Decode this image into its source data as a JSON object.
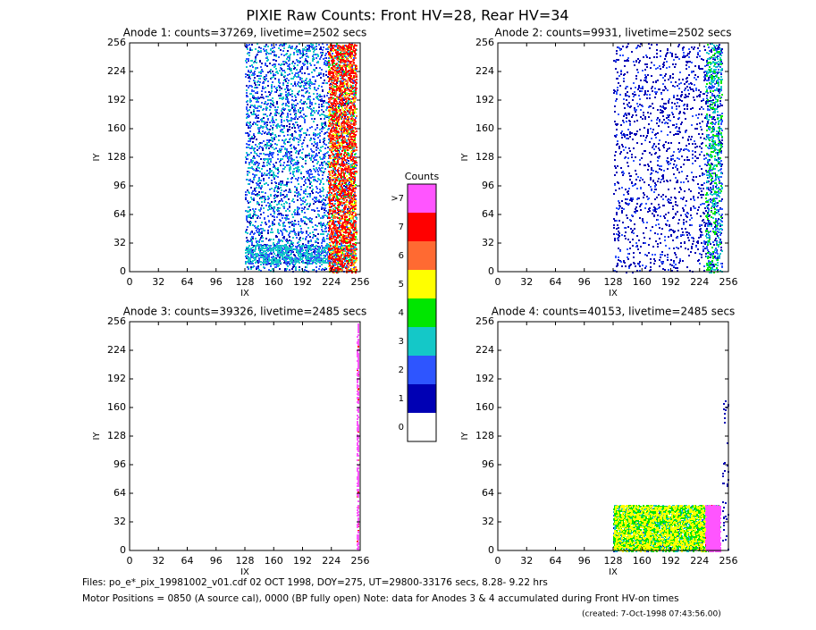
{
  "title": "PIXIE Raw Counts:  Front HV=28, Rear HV=34",
  "chart_data": [
    {
      "type": "heatmap",
      "title": "Anode 1: counts=37269, livetime=2502 secs",
      "xlabel": "IX",
      "ylabel": "IY",
      "xlim": [
        0,
        256
      ],
      "ylim": [
        0,
        256
      ],
      "xticks": [
        0,
        32,
        64,
        96,
        128,
        160,
        192,
        224,
        256
      ],
      "yticks": [
        0,
        32,
        64,
        96,
        128,
        160,
        192,
        224,
        256
      ]
    },
    {
      "type": "heatmap",
      "title": "Anode 2: counts=9931, livetime=2502 secs",
      "xlabel": "IX",
      "ylabel": "IY",
      "xlim": [
        0,
        256
      ],
      "ylim": [
        0,
        256
      ],
      "xticks": [
        0,
        32,
        64,
        96,
        128,
        160,
        192,
        224,
        256
      ],
      "yticks": [
        0,
        32,
        64,
        96,
        128,
        160,
        192,
        224,
        256
      ]
    },
    {
      "type": "heatmap",
      "title": "Anode 3: counts=39326, livetime=2485 secs",
      "xlabel": "IX",
      "ylabel": "IY",
      "xlim": [
        0,
        256
      ],
      "ylim": [
        0,
        256
      ],
      "xticks": [
        0,
        32,
        64,
        96,
        128,
        160,
        192,
        224,
        256
      ],
      "yticks": [
        0,
        32,
        64,
        96,
        128,
        160,
        192,
        224,
        256
      ]
    },
    {
      "type": "heatmap",
      "title": "Anode 4: counts=40153, livetime=2485 secs",
      "xlabel": "IX",
      "ylabel": "IY",
      "xlim": [
        0,
        256
      ],
      "ylim": [
        0,
        256
      ],
      "xticks": [
        0,
        32,
        64,
        96,
        128,
        160,
        192,
        224,
        256
      ],
      "yticks": [
        0,
        32,
        64,
        96,
        128,
        160,
        192,
        224,
        256
      ]
    }
  ],
  "colorbar": {
    "title": "Counts",
    "levels": [
      {
        "label": "0",
        "color": "#ffffff"
      },
      {
        "label": "1",
        "color": "#0000b4"
      },
      {
        "label": "2",
        "color": "#2e55ff"
      },
      {
        "label": "3",
        "color": "#14c8c8"
      },
      {
        "label": "4",
        "color": "#00e600"
      },
      {
        "label": "5",
        "color": "#ffff00"
      },
      {
        "label": "6",
        "color": "#ff6a32"
      },
      {
        "label": "7",
        "color": "#ff0000"
      },
      {
        "label": ">7",
        "color": "#ff55ff"
      }
    ]
  },
  "footer": {
    "files": "Files: po_e*_pix_19981002_v01.cdf    02 OCT 1998, DOY=275, UT=29800-33176 secs,  8.28- 9.22 hrs",
    "motor": "Motor Positions = 0850 (A source cal), 0000 (BP fully open)    Note: data for Anodes 3 & 4 accumulated during Front HV-on times",
    "created": "(created:  7-Oct-1998 07:43:56.00)"
  }
}
